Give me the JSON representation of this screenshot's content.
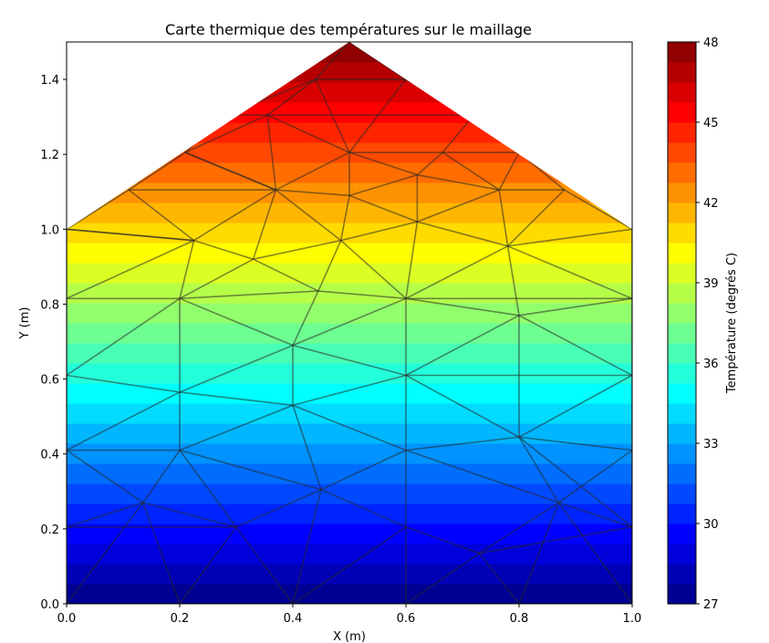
{
  "chart_data": {
    "type": "heatmap",
    "title": "Carte thermique des températures sur le maillage",
    "xlabel": "X (m)",
    "ylabel": "Y (m)",
    "xlim": [
      0,
      1.0
    ],
    "ylim": [
      0,
      1.5
    ],
    "xticks": [
      "0.0",
      "0.2",
      "0.4",
      "0.6",
      "0.8",
      "1.0"
    ],
    "yticks": [
      "0.0",
      "0.2",
      "0.4",
      "0.6",
      "0.8",
      "1.0",
      "1.2",
      "1.4"
    ],
    "colorbar": {
      "label": "Température (degrés C)",
      "range": [
        27,
        48
      ],
      "ticks": [
        "27",
        "30",
        "33",
        "36",
        "39",
        "42",
        "45",
        "48"
      ],
      "levels": [
        27,
        27.75,
        28.5,
        29.25,
        30,
        30.75,
        31.5,
        32.25,
        33,
        33.75,
        34.5,
        35.25,
        36,
        36.75,
        37.5,
        38.25,
        39,
        39.75,
        40.5,
        41.25,
        42,
        42.75,
        43.5,
        44.25,
        45,
        45.75,
        46.5,
        47.25,
        48
      ],
      "colormap": "jet"
    },
    "domain_outline": [
      [
        0,
        0
      ],
      [
        1,
        0
      ],
      [
        1,
        1
      ],
      [
        0.5,
        1.5
      ],
      [
        0,
        1
      ]
    ],
    "temperature_model": "approximately linear in y: 27 at y=0, 48 at y=1.5",
    "mesh_nodes": [
      [
        0,
        0
      ],
      [
        0.2,
        0
      ],
      [
        0.4,
        0
      ],
      [
        0.6,
        0
      ],
      [
        0.8,
        0
      ],
      [
        1,
        0
      ],
      [
        0,
        0.205
      ],
      [
        0.135,
        0.27
      ],
      [
        0.3,
        0.205
      ],
      [
        0.45,
        0.305
      ],
      [
        0.6,
        0.205
      ],
      [
        0.73,
        0.135
      ],
      [
        0.87,
        0.27
      ],
      [
        1,
        0.205
      ],
      [
        0,
        0.41
      ],
      [
        0.2,
        0.41
      ],
      [
        0.4,
        0.53
      ],
      [
        0.6,
        0.41
      ],
      [
        0.8,
        0.445
      ],
      [
        1,
        0.41
      ],
      [
        0,
        0.61
      ],
      [
        0.2,
        0.565
      ],
      [
        0.4,
        0.69
      ],
      [
        0.6,
        0.61
      ],
      [
        0.8,
        0.77
      ],
      [
        1,
        0.61
      ],
      [
        0,
        0.815
      ],
      [
        0.2,
        0.815
      ],
      [
        0.445,
        0.835
      ],
      [
        0.6,
        0.815
      ],
      [
        1,
        0.815
      ],
      [
        0.33,
        0.92
      ],
      [
        0.485,
        0.97
      ],
      [
        0.225,
        0.97
      ],
      [
        0.78,
        0.955
      ],
      [
        1,
        1
      ],
      [
        0,
        1
      ],
      [
        0.11,
        1.105
      ],
      [
        0.37,
        1.105
      ],
      [
        0.5,
        1.09
      ],
      [
        0.62,
        1.02
      ],
      [
        0.765,
        1.105
      ],
      [
        0.88,
        1.105
      ],
      [
        0.21,
        1.205
      ],
      [
        0.5,
        1.205
      ],
      [
        0.62,
        1.145
      ],
      [
        0.355,
        1.305
      ],
      [
        0.28,
        1.305
      ],
      [
        0.72,
        1.305
      ],
      [
        0.665,
        1.205
      ],
      [
        0.8,
        1.205
      ],
      [
        0.44,
        1.4
      ],
      [
        0.6,
        1.4
      ],
      [
        0.5,
        1.5
      ]
    ],
    "mesh_edges": [
      [
        0,
        1
      ],
      [
        1,
        2
      ],
      [
        2,
        3
      ],
      [
        3,
        4
      ],
      [
        4,
        5
      ],
      [
        0,
        7
      ],
      [
        7,
        1
      ],
      [
        6,
        7
      ],
      [
        6,
        8
      ],
      [
        7,
        8
      ],
      [
        8,
        1
      ],
      [
        8,
        2
      ],
      [
        8,
        9
      ],
      [
        9,
        2
      ],
      [
        9,
        10
      ],
      [
        10,
        2
      ],
      [
        10,
        3
      ],
      [
        10,
        11
      ],
      [
        11,
        3
      ],
      [
        11,
        4
      ],
      [
        11,
        12
      ],
      [
        12,
        4
      ],
      [
        12,
        5
      ],
      [
        12,
        13
      ],
      [
        13,
        5
      ],
      [
        13,
        11
      ],
      [
        6,
        14
      ],
      [
        14,
        7
      ],
      [
        7,
        15
      ],
      [
        15,
        8
      ],
      [
        15,
        9
      ],
      [
        9,
        16
      ],
      [
        16,
        15
      ],
      [
        9,
        17
      ],
      [
        17,
        10
      ],
      [
        16,
        17
      ],
      [
        17,
        12
      ],
      [
        12,
        18
      ],
      [
        18,
        17
      ],
      [
        18,
        13
      ],
      [
        13,
        19
      ],
      [
        12,
        19
      ],
      [
        14,
        15
      ],
      [
        18,
        19
      ],
      [
        14,
        20
      ],
      [
        14,
        21
      ],
      [
        15,
        21
      ],
      [
        16,
        21
      ],
      [
        16,
        22
      ],
      [
        21,
        22
      ],
      [
        16,
        23
      ],
      [
        22,
        23
      ],
      [
        17,
        23
      ],
      [
        23,
        18
      ],
      [
        18,
        25
      ],
      [
        19,
        25
      ],
      [
        23,
        25
      ],
      [
        23,
        24
      ],
      [
        24,
        25
      ],
      [
        18,
        24
      ],
      [
        20,
        21
      ],
      [
        20,
        26
      ],
      [
        20,
        27
      ],
      [
        21,
        27
      ],
      [
        22,
        27
      ],
      [
        22,
        28
      ],
      [
        22,
        29
      ],
      [
        23,
        29
      ],
      [
        24,
        29
      ],
      [
        24,
        30
      ],
      [
        25,
        30
      ],
      [
        26,
        27
      ],
      [
        27,
        28
      ],
      [
        28,
        29
      ],
      [
        29,
        30
      ],
      [
        26,
        33
      ],
      [
        27,
        33
      ],
      [
        27,
        31
      ],
      [
        31,
        28
      ],
      [
        28,
        32
      ],
      [
        32,
        29
      ],
      [
        29,
        34
      ],
      [
        24,
        34
      ],
      [
        30,
        34
      ],
      [
        30,
        35
      ],
      [
        34,
        35
      ],
      [
        31,
        33
      ],
      [
        31,
        32
      ],
      [
        32,
        40
      ],
      [
        29,
        40
      ],
      [
        34,
        40
      ],
      [
        33,
        36
      ],
      [
        36,
        26
      ],
      [
        32,
        38
      ],
      [
        31,
        38
      ],
      [
        36,
        37
      ],
      [
        36,
        33
      ],
      [
        37,
        33
      ],
      [
        33,
        38
      ],
      [
        37,
        43
      ],
      [
        38,
        43
      ],
      [
        37,
        38
      ],
      [
        38,
        39
      ],
      [
        32,
        39
      ],
      [
        39,
        40
      ],
      [
        40,
        41
      ],
      [
        34,
        41
      ],
      [
        41,
        42
      ],
      [
        34,
        42
      ],
      [
        35,
        42
      ],
      [
        39,
        44
      ],
      [
        38,
        44
      ],
      [
        44,
        45
      ],
      [
        39,
        45
      ],
      [
        40,
        45
      ],
      [
        45,
        41
      ],
      [
        45,
        49
      ],
      [
        41,
        50
      ],
      [
        41,
        49
      ],
      [
        49,
        50
      ],
      [
        50,
        42
      ],
      [
        43,
        47
      ],
      [
        43,
        38
      ],
      [
        38,
        46
      ],
      [
        47,
        46
      ],
      [
        46,
        44
      ],
      [
        44,
        49
      ],
      [
        49,
        48
      ],
      [
        48,
        50
      ],
      [
        46,
        48
      ],
      [
        46,
        51
      ],
      [
        44,
        51
      ],
      [
        44,
        52
      ],
      [
        48,
        52
      ],
      [
        51,
        52
      ],
      [
        51,
        53
      ],
      [
        52,
        53
      ],
      [
        47,
        51
      ],
      [
        43,
        46
      ]
    ]
  }
}
